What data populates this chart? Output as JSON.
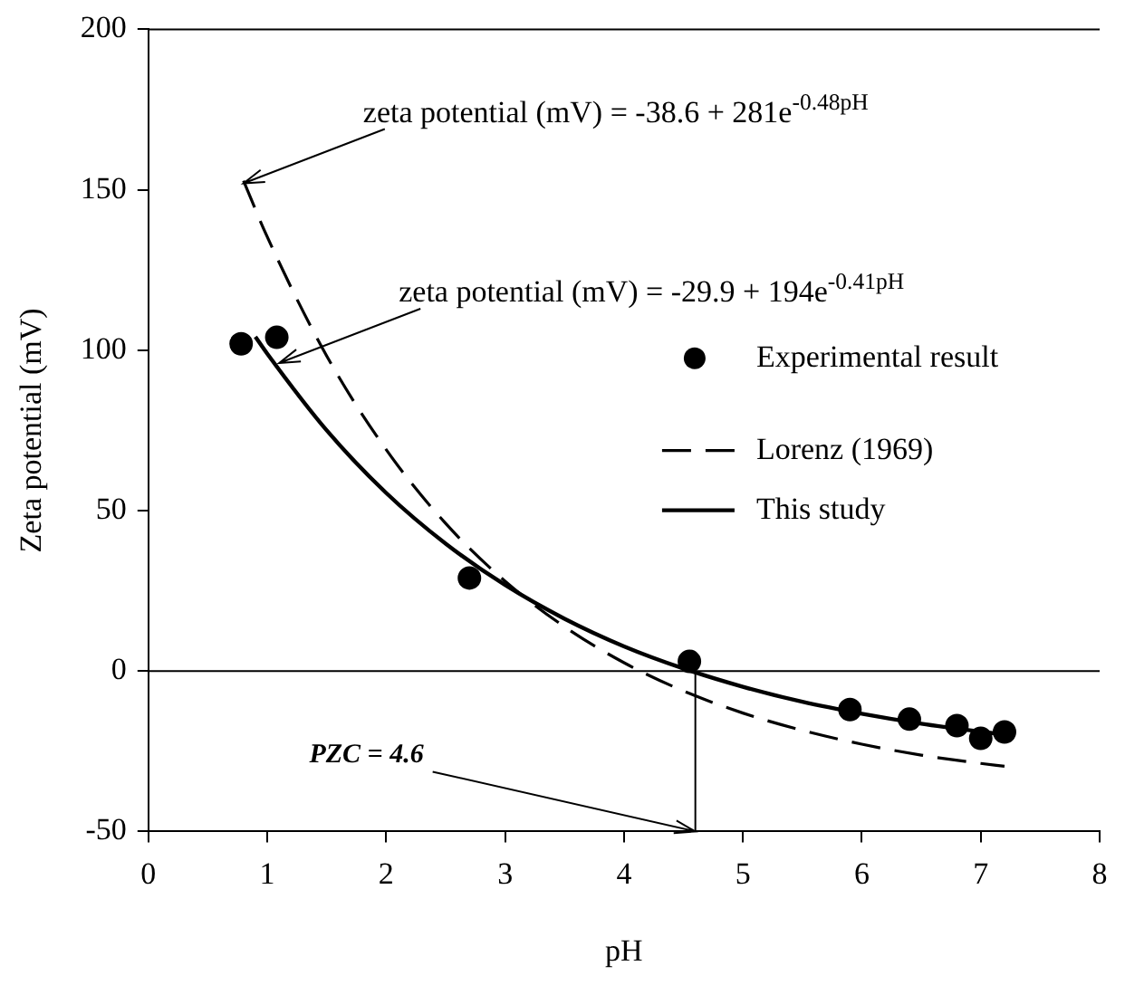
{
  "chart_data": {
    "type": "scatter",
    "xlabel": "pH",
    "ylabel": "Zeta potential (mV)",
    "xlim": [
      0,
      8
    ],
    "xticks": [
      0,
      1,
      2,
      3,
      4,
      5,
      6,
      7,
      8
    ],
    "ylim": [
      -50,
      200
    ],
    "yticks": [
      -50,
      0,
      50,
      100,
      150,
      200
    ],
    "grid": false,
    "legend": "right",
    "series": [
      {
        "name": "Experimental result",
        "type": "scatter",
        "color": "#000000",
        "marker": "circle",
        "x": [
          0.78,
          1.08,
          2.7,
          4.55,
          5.9,
          6.4,
          6.8,
          7.0,
          7.2
        ],
        "values": [
          102,
          104,
          29,
          3,
          -12,
          -15,
          -17,
          -21,
          -19
        ]
      },
      {
        "name": "Lorenz (1969)",
        "type": "line",
        "color": "#000000",
        "line_style": "dashed",
        "marker": "none",
        "x": [
          0.8,
          1,
          1.5,
          2,
          2.5,
          3,
          3.5,
          4,
          4.5,
          5,
          5.5,
          6,
          6.5,
          7,
          7.2
        ],
        "values": [
          152.8,
          135.3,
          98.2,
          69.0,
          46.0,
          28.0,
          13.8,
          2.6,
          -6.2,
          -13.1,
          -18.5,
          -22.8,
          -26.2,
          -28.8,
          -29.7
        ]
      },
      {
        "name": "This study",
        "type": "line",
        "color": "#000000",
        "line_style": "solid",
        "marker": "none",
        "x": [
          0.9,
          1,
          1.5,
          2,
          2.5,
          3,
          3.5,
          4,
          4.5,
          5,
          5.5,
          6,
          6.5,
          7,
          7.2
        ],
        "values": [
          104.2,
          98.9,
          75.0,
          55.5,
          39.7,
          26.8,
          16.3,
          7.7,
          0.8,
          -4.9,
          -9.6,
          -13.3,
          -16.4,
          -18.9,
          -19.8
        ]
      }
    ],
    "ref_lines": [
      {
        "axis": "y",
        "value": 0
      },
      {
        "axis": "x",
        "value": 4.6,
        "label": "PZC = 4.6"
      }
    ],
    "annotations": [
      {
        "text": "zeta potential (mV) = -38.6 + 281e$^{-0.48pH}$",
        "x": 0.8,
        "y": 152
      },
      {
        "text": "zeta potential (mV) = -29.9 + 194e$^{-0.41pH}$",
        "x": 1.1,
        "y": 96
      }
    ]
  }
}
